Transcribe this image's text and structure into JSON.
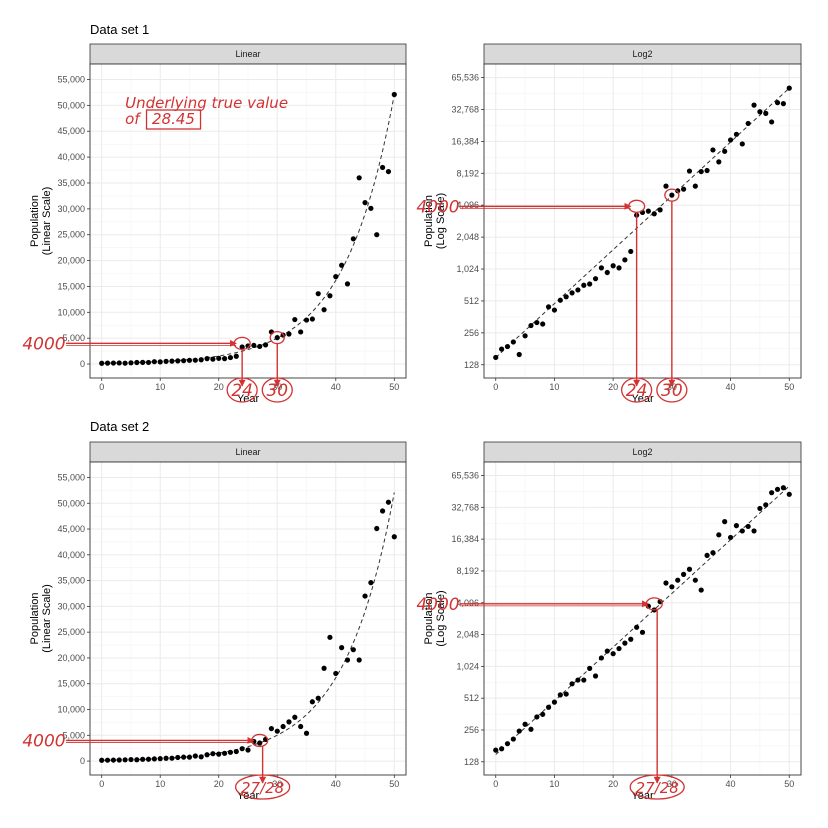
{
  "chart_data": [
    {
      "type": "scatter",
      "figure_title": "Data set 1",
      "panel": "Linear",
      "scale": "linear",
      "xlabel": "Year",
      "ylabel": "Population\n(Linear Scale)",
      "xlim": [
        -2,
        52
      ],
      "ylim": [
        -2700,
        58000
      ],
      "xticks": [
        0,
        10,
        20,
        30,
        40,
        50
      ],
      "yticks": [
        0,
        5000,
        10000,
        15000,
        20000,
        25000,
        30000,
        35000,
        40000,
        45000,
        50000,
        55000
      ],
      "ytick_labels": [
        "0",
        "5,000",
        "10,000",
        "15,000",
        "20,000",
        "25,000",
        "30,000",
        "35,000",
        "40,000",
        "45,000",
        "50,000",
        "55,000"
      ],
      "grid": true,
      "trend": {
        "type": "exponential",
        "a": 150,
        "b": 0.117
      },
      "x": [
        0,
        1,
        2,
        3,
        4,
        5,
        6,
        7,
        8,
        9,
        10,
        11,
        12,
        13,
        14,
        15,
        16,
        17,
        18,
        19,
        20,
        21,
        22,
        23,
        24,
        25,
        26,
        27,
        28,
        29,
        30,
        31,
        32,
        33,
        34,
        35,
        36,
        37,
        38,
        39,
        40,
        41,
        42,
        43,
        44,
        45,
        46,
        47,
        48,
        49,
        50
      ],
      "y": [
        150,
        180,
        190,
        210,
        160,
        240,
        300,
        320,
        310,
        450,
        420,
        520,
        560,
        610,
        650,
        720,
        740,
        830,
        1050,
        950,
        1100,
        1050,
        1250,
        1500,
        3300,
        3500,
        3600,
        3400,
        3700,
        6200,
        5100,
        5600,
        5800,
        8600,
        6200,
        8500,
        8700,
        13600,
        10500,
        13200,
        16900,
        19100,
        15500,
        24200,
        36000,
        31200,
        30100,
        25000,
        38000,
        37200,
        52100
      ],
      "annotations": [
        {
          "text": "Underlying true value",
          "x": 4,
          "y": 49500
        },
        {
          "text": "of",
          "x": 4,
          "y": 46400
        },
        {
          "text": "28.45",
          "x": 8,
          "y": 46400,
          "boxed": true
        },
        {
          "text": "4000",
          "x": 0,
          "y": 4000,
          "arrow_from": "y_axis",
          "arrow_to": [
            24,
            4000
          ]
        },
        {
          "text": "24",
          "x": 24,
          "y": 0,
          "circled": true,
          "arrow_from": [
            24,
            4000
          ]
        },
        {
          "text": "30",
          "x": 30,
          "y": 0,
          "circled": true,
          "arrow_from": [
            30,
            5100
          ]
        }
      ]
    },
    {
      "type": "scatter",
      "figure_title": "Data set 1",
      "panel": "Log2",
      "scale": "log2",
      "xlabel": "Year",
      "ylabel": "Population\n(Log Scale)",
      "xlim": [
        -2,
        52
      ],
      "ylim": [
        96,
        88000
      ],
      "xticks": [
        0,
        10,
        20,
        30,
        40,
        50
      ],
      "yticks": [
        128,
        256,
        512,
        1024,
        2048,
        4096,
        8192,
        16384,
        32768,
        65536
      ],
      "ytick_labels": [
        "128",
        "256",
        "512",
        "1,024",
        "2,048",
        "4,096",
        "8,192",
        "16,384",
        "32,768",
        "65,536"
      ],
      "grid": true,
      "trend": {
        "type": "exponential",
        "a": 150,
        "b": 0.117
      },
      "x": [
        0,
        1,
        2,
        3,
        4,
        5,
        6,
        7,
        8,
        9,
        10,
        11,
        12,
        13,
        14,
        15,
        16,
        17,
        18,
        19,
        20,
        21,
        22,
        23,
        24,
        25,
        26,
        27,
        28,
        29,
        30,
        31,
        32,
        33,
        34,
        35,
        36,
        37,
        38,
        39,
        40,
        41,
        42,
        43,
        44,
        45,
        46,
        47,
        48,
        49,
        50
      ],
      "y": [
        150,
        180,
        190,
        210,
        160,
        240,
        300,
        320,
        310,
        450,
        420,
        520,
        560,
        610,
        650,
        720,
        740,
        830,
        1050,
        950,
        1100,
        1050,
        1250,
        1500,
        3300,
        3500,
        3600,
        3400,
        3700,
        6200,
        5100,
        5600,
        5800,
        8600,
        6200,
        8500,
        8700,
        13600,
        10500,
        13200,
        16900,
        19100,
        15500,
        24200,
        36000,
        31200,
        30100,
        25000,
        38000,
        37200,
        52100
      ],
      "annotations": [
        {
          "text": "4000",
          "x": 0,
          "y": 4000,
          "arrow_from": "y_axis",
          "arrow_to": [
            24,
            4000
          ]
        },
        {
          "text": "24",
          "x": 24,
          "y": 0,
          "circled": true,
          "arrow_from": [
            24,
            4000
          ]
        },
        {
          "text": "30",
          "x": 30,
          "y": 0,
          "circled": true,
          "arrow_from": [
            30,
            5100
          ]
        }
      ]
    },
    {
      "type": "scatter",
      "figure_title": "Data set 2",
      "panel": "Linear",
      "scale": "linear",
      "xlabel": "Year",
      "ylabel": "Population\n(Linear Scale)",
      "xlim": [
        -2,
        52
      ],
      "ylim": [
        -2700,
        58000
      ],
      "xticks": [
        0,
        10,
        20,
        30,
        40,
        50
      ],
      "yticks": [
        0,
        5000,
        10000,
        15000,
        20000,
        25000,
        30000,
        35000,
        40000,
        45000,
        50000,
        55000
      ],
      "ytick_labels": [
        "0",
        "5,000",
        "10,000",
        "15,000",
        "20,000",
        "25,000",
        "30,000",
        "35,000",
        "40,000",
        "45,000",
        "50,000",
        "55,000"
      ],
      "grid": true,
      "trend": {
        "type": "exponential",
        "a": 150,
        "b": 0.117
      },
      "x": [
        0,
        1,
        2,
        3,
        4,
        5,
        6,
        7,
        8,
        9,
        10,
        11,
        12,
        13,
        14,
        15,
        16,
        17,
        18,
        19,
        20,
        21,
        22,
        23,
        24,
        25,
        26,
        27,
        28,
        29,
        30,
        31,
        32,
        33,
        34,
        35,
        36,
        37,
        38,
        39,
        40,
        41,
        42,
        43,
        44,
        45,
        46,
        47,
        48,
        49,
        50
      ],
      "y": [
        165,
        170,
        190,
        210,
        250,
        290,
        260,
        340,
        360,
        420,
        470,
        550,
        560,
        700,
        760,
        760,
        980,
        830,
        1230,
        1430,
        1350,
        1510,
        1700,
        1850,
        2400,
        2150,
        3800,
        3500,
        4200,
        6300,
        5800,
        6700,
        7600,
        8500,
        6700,
        5400,
        11500,
        12200,
        18000,
        24000,
        17000,
        22000,
        19600,
        21600,
        19600,
        32000,
        34600,
        45100,
        48500,
        50200,
        43500
      ],
      "annotations": [
        {
          "text": "4000",
          "x": 0,
          "y": 4000,
          "arrow_from": "y_axis",
          "arrow_to": [
            27,
            4000
          ]
        },
        {
          "text": "27/28",
          "x": 27.5,
          "y": 0,
          "circled": true,
          "arrow_from": [
            27.5,
            4000
          ]
        }
      ]
    },
    {
      "type": "scatter",
      "figure_title": "Data set 2",
      "panel": "Log2",
      "scale": "log2",
      "xlabel": "Year",
      "ylabel": "Population\n(Log Scale)",
      "xlim": [
        -2,
        52
      ],
      "ylim": [
        96,
        88000
      ],
      "xticks": [
        0,
        10,
        20,
        30,
        40,
        50
      ],
      "yticks": [
        128,
        256,
        512,
        1024,
        2048,
        4096,
        8192,
        16384,
        32768,
        65536
      ],
      "ytick_labels": [
        "128",
        "256",
        "512",
        "1,024",
        "2,048",
        "4,096",
        "8,192",
        "16,384",
        "32,768",
        "65,536"
      ],
      "grid": true,
      "trend": {
        "type": "exponential",
        "a": 150,
        "b": 0.117
      },
      "x": [
        0,
        1,
        2,
        3,
        4,
        5,
        6,
        7,
        8,
        9,
        10,
        11,
        12,
        13,
        14,
        15,
        16,
        17,
        18,
        19,
        20,
        21,
        22,
        23,
        24,
        25,
        26,
        27,
        28,
        29,
        30,
        31,
        32,
        33,
        34,
        35,
        36,
        37,
        38,
        39,
        40,
        41,
        42,
        43,
        44,
        45,
        46,
        47,
        48,
        49,
        50
      ],
      "y": [
        165,
        170,
        190,
        210,
        250,
        290,
        260,
        340,
        360,
        420,
        470,
        550,
        560,
        700,
        760,
        760,
        980,
        830,
        1230,
        1430,
        1350,
        1510,
        1700,
        1850,
        2400,
        2150,
        3800,
        3500,
        4200,
        6300,
        5800,
        6700,
        7600,
        8500,
        6700,
        5400,
        11500,
        12200,
        18000,
        24000,
        17000,
        22000,
        19600,
        21600,
        19600,
        32000,
        34600,
        45100,
        48500,
        50200,
        43500
      ],
      "annotations": [
        {
          "text": "4000",
          "x": 0,
          "y": 4000,
          "arrow_from": "y_axis",
          "arrow_to": [
            27,
            4000
          ]
        },
        {
          "text": "27/28",
          "x": 27.5,
          "y": 0,
          "circled": true,
          "arrow_from": [
            27.5,
            4000
          ]
        }
      ]
    }
  ],
  "colors": {
    "points": "#000000",
    "trend": "#333333",
    "annotation": "#d23232",
    "strip_fill": "#d9d9d9",
    "grid": "#ebebeb"
  }
}
